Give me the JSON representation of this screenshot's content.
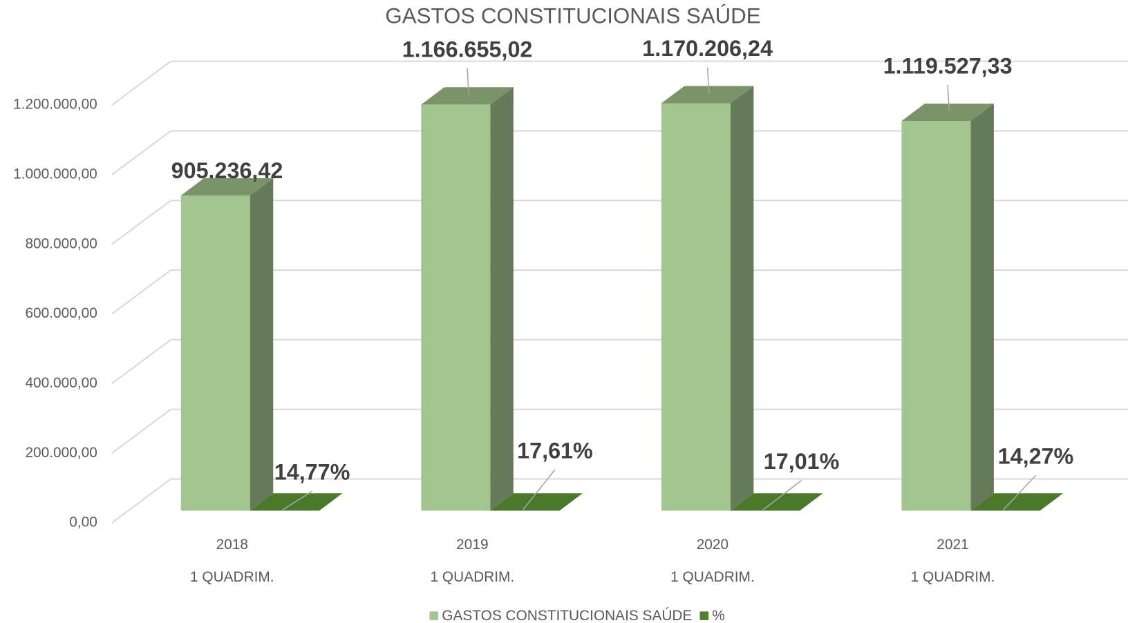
{
  "chart_data": {
    "type": "bar3d",
    "title": "GASTOS CONSTITUCIONAIS SAÚDE",
    "categories": [
      "2018",
      "2019",
      "2020",
      "2021"
    ],
    "category_sublabels": [
      "1 QUADRIM.",
      "1 QUADRIM.",
      "1 QUADRIM.",
      "1 QUADRIM."
    ],
    "series": [
      {
        "name": "GASTOS CONSTITUCIONAIS SAÚDE",
        "color": "#a2c48e",
        "values": [
          905236.42,
          1166655.02,
          1170206.24,
          1119527.33
        ],
        "value_labels": [
          "905.236,42",
          "1.166.655,02",
          "1.170.206,24",
          "1.119.527,33"
        ]
      },
      {
        "name": "%",
        "color": "#4f7f2e",
        "values": [
          14.77,
          17.61,
          17.01,
          14.27
        ],
        "value_labels": [
          "14,77%",
          "17,61%",
          "17,01%",
          "14,27%"
        ]
      }
    ],
    "ylim": [
      0,
      1200000
    ],
    "yticks": [
      {
        "value": 0,
        "label": "0,00"
      },
      {
        "value": 200000,
        "label": "200.000,00"
      },
      {
        "value": 400000,
        "label": "400.000,00"
      },
      {
        "value": 600000,
        "label": "600.000,00"
      },
      {
        "value": 800000,
        "label": "800.000,00"
      },
      {
        "value": 1000000,
        "label": "1.000.000,00"
      },
      {
        "value": 1200000,
        "label": "1.200.000,00"
      }
    ],
    "grid": true,
    "legend": "bottom"
  }
}
